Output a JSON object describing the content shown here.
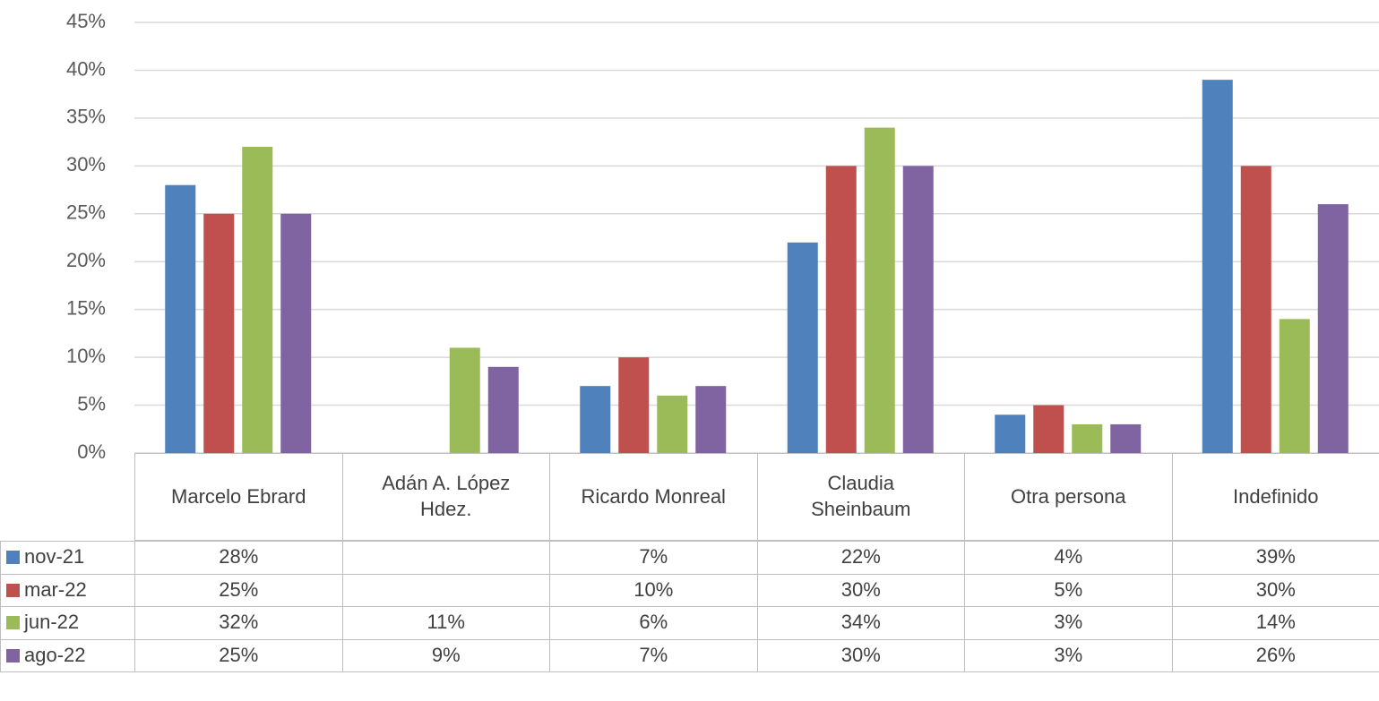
{
  "chart_data": {
    "type": "bar",
    "categories": [
      "Marcelo Ebrard",
      "Adán A. López Hdez.",
      "Ricardo Monreal",
      "Claudia Sheinbaum",
      "Otra persona",
      "Indefinido"
    ],
    "series": [
      {
        "name": "nov-21",
        "color": "#4f81bd",
        "values": [
          28,
          null,
          7,
          22,
          4,
          39
        ],
        "value_labels": [
          "28%",
          null,
          "7%",
          "22%",
          "4%",
          "39%"
        ]
      },
      {
        "name": "mar-22",
        "color": "#c0504d",
        "values": [
          25,
          null,
          10,
          30,
          5,
          30
        ],
        "value_labels": [
          "25%",
          null,
          "10%",
          "30%",
          "5%",
          "30%"
        ]
      },
      {
        "name": "jun-22",
        "color": "#9bbb59",
        "values": [
          32,
          11,
          6,
          34,
          3,
          14
        ],
        "value_labels": [
          "32%",
          "11%",
          "6%",
          "34%",
          "3%",
          "14%"
        ]
      },
      {
        "name": "ago-22",
        "color": "#8064a2",
        "values": [
          25,
          9,
          7,
          30,
          3,
          26
        ],
        "value_labels": [
          "25%",
          "9%",
          "7%",
          "30%",
          "3%",
          "26%"
        ]
      }
    ],
    "ylim": [
      0,
      45
    ],
    "yticks": [
      {
        "value": 0,
        "label": "0%"
      },
      {
        "value": 5,
        "label": "5%"
      },
      {
        "value": 10,
        "label": "10%"
      },
      {
        "value": 15,
        "label": "15%"
      },
      {
        "value": 20,
        "label": "20%"
      },
      {
        "value": 25,
        "label": "25%"
      },
      {
        "value": 30,
        "label": "30%"
      },
      {
        "value": 35,
        "label": "35%"
      },
      {
        "value": 40,
        "label": "40%"
      },
      {
        "value": 45,
        "label": "45%"
      }
    ],
    "grid": true
  }
}
